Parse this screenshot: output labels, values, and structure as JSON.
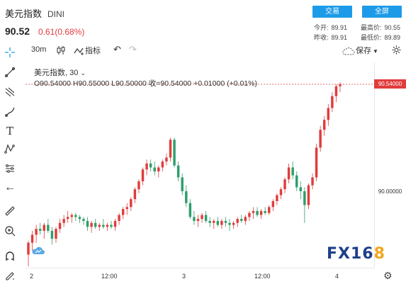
{
  "header": {
    "title": "美元指数",
    "symbol": "DINI",
    "price": "90.52",
    "change": "0.61(0.68%)",
    "buttons": {
      "trade": "交易",
      "fullscreen": "全屏"
    },
    "stats": {
      "today_open_label": "今开:",
      "today_open": "89.91",
      "high_label": "最高价:",
      "high": "90.55",
      "prev_close_label": "昨收:",
      "prev_close": "89.91",
      "low_label": "最低价:",
      "low": "89.89"
    }
  },
  "toolbar": {
    "interval": "30m",
    "indicators_label": "指标",
    "save_label": "保存"
  },
  "legend": {
    "title": "美元指数",
    "interval": "30",
    "ohlc": "O90.54000  H90.55000  L90.50000  收=90.54000  +0.01000 (+0.01%)"
  },
  "axis": {
    "last_price_tag": "90.54000",
    "mid_tick": "90.00000"
  },
  "time_axis": [
    "2",
    "12:00",
    "3",
    "12:00",
    "4"
  ],
  "watermark": {
    "part1": "FX16",
    "part2": "8"
  },
  "colors": {
    "up": "#e03c3c",
    "down": "#2e9e6b",
    "accent": "#1e9be8"
  },
  "chart_data": {
    "type": "candlestick",
    "y_axis_tick": 90.0,
    "last_price": 90.54,
    "candles": [
      [
        89.68,
        89.75,
        89.62,
        89.74
      ],
      [
        89.74,
        89.8,
        89.7,
        89.78
      ],
      [
        89.78,
        89.83,
        89.74,
        89.81
      ],
      [
        89.81,
        89.84,
        89.78,
        89.8
      ],
      [
        89.8,
        89.84,
        89.76,
        89.83
      ],
      [
        89.83,
        89.86,
        89.79,
        89.8
      ],
      [
        89.8,
        89.82,
        89.73,
        89.76
      ],
      [
        89.76,
        89.82,
        89.74,
        89.81
      ],
      [
        89.81,
        89.86,
        89.79,
        89.84
      ],
      [
        89.84,
        89.88,
        89.82,
        89.86
      ],
      [
        89.86,
        89.9,
        89.84,
        89.87
      ],
      [
        89.87,
        89.89,
        89.84,
        89.88
      ],
      [
        89.88,
        89.89,
        89.85,
        89.87
      ],
      [
        89.87,
        89.88,
        89.84,
        89.86
      ],
      [
        89.86,
        89.87,
        89.83,
        89.85
      ],
      [
        89.85,
        89.87,
        89.8,
        89.82
      ],
      [
        89.82,
        89.85,
        89.79,
        89.84
      ],
      [
        89.84,
        89.86,
        89.81,
        89.82
      ],
      [
        89.82,
        89.84,
        89.8,
        89.83
      ],
      [
        89.83,
        89.86,
        89.81,
        89.82
      ],
      [
        89.82,
        89.84,
        89.8,
        89.83
      ],
      [
        89.83,
        89.85,
        89.81,
        89.82
      ],
      [
        89.82,
        89.86,
        89.8,
        89.85
      ],
      [
        89.85,
        89.89,
        89.83,
        89.88
      ],
      [
        89.88,
        89.92,
        89.86,
        89.91
      ],
      [
        89.91,
        89.94,
        89.88,
        89.92
      ],
      [
        89.92,
        89.97,
        89.9,
        89.96
      ],
      [
        89.96,
        90.02,
        89.94,
        90.01
      ],
      [
        90.01,
        90.06,
        89.99,
        90.05
      ],
      [
        90.05,
        90.12,
        90.03,
        90.11
      ],
      [
        90.11,
        90.16,
        90.08,
        90.14
      ],
      [
        90.14,
        90.16,
        90.1,
        90.12
      ],
      [
        90.12,
        90.15,
        90.08,
        90.1
      ],
      [
        90.1,
        90.13,
        90.07,
        90.12
      ],
      [
        90.12,
        90.16,
        90.1,
        90.15
      ],
      [
        90.15,
        90.19,
        90.13,
        90.17
      ],
      [
        90.17,
        90.27,
        90.15,
        90.26
      ],
      [
        90.26,
        90.27,
        90.12,
        90.13
      ],
      [
        90.13,
        90.15,
        90.05,
        90.07
      ],
      [
        90.07,
        90.09,
        89.98,
        90.0
      ],
      [
        90.0,
        90.03,
        89.92,
        89.94
      ],
      [
        89.94,
        89.96,
        89.86,
        89.87
      ],
      [
        89.87,
        89.9,
        89.83,
        89.85
      ],
      [
        89.85,
        89.88,
        89.82,
        89.86
      ],
      [
        89.86,
        89.89,
        89.84,
        89.88
      ],
      [
        89.88,
        89.9,
        89.84,
        89.85
      ],
      [
        89.85,
        89.87,
        89.82,
        89.84
      ],
      [
        89.84,
        89.86,
        89.81,
        89.85
      ],
      [
        89.85,
        89.87,
        89.82,
        89.83
      ],
      [
        89.83,
        89.86,
        89.81,
        89.85
      ],
      [
        89.85,
        89.87,
        89.82,
        89.84
      ],
      [
        89.84,
        89.86,
        89.8,
        89.83
      ],
      [
        89.83,
        89.85,
        89.81,
        89.84
      ],
      [
        89.84,
        89.87,
        89.82,
        89.86
      ],
      [
        89.86,
        89.88,
        89.84,
        89.85
      ],
      [
        89.85,
        89.88,
        89.83,
        89.87
      ],
      [
        89.87,
        89.9,
        89.85,
        89.89
      ],
      [
        89.89,
        89.92,
        89.86,
        89.9
      ],
      [
        89.9,
        89.92,
        89.87,
        89.88
      ],
      [
        89.88,
        89.91,
        89.86,
        89.9
      ],
      [
        89.9,
        89.92,
        89.88,
        89.89
      ],
      [
        89.89,
        89.93,
        89.88,
        89.92
      ],
      [
        89.92,
        89.96,
        89.9,
        89.95
      ],
      [
        89.95,
        89.99,
        89.93,
        89.98
      ],
      [
        89.98,
        90.02,
        89.96,
        90.01
      ],
      [
        90.01,
        90.07,
        89.99,
        90.06
      ],
      [
        90.06,
        90.14,
        90.04,
        90.12
      ],
      [
        90.12,
        90.15,
        90.06,
        90.08
      ],
      [
        90.08,
        90.1,
        90.0,
        90.02
      ],
      [
        90.02,
        90.05,
        89.96,
        90.0
      ],
      [
        90.0,
        90.02,
        89.84,
        89.93
      ],
      [
        89.93,
        90.04,
        89.91,
        90.03
      ],
      [
        90.03,
        90.09,
        90.01,
        90.07
      ],
      [
        90.07,
        90.24,
        90.05,
        90.22
      ],
      [
        90.22,
        90.33,
        90.2,
        90.31
      ],
      [
        90.31,
        90.38,
        90.28,
        90.36
      ],
      [
        90.36,
        90.44,
        90.33,
        90.42
      ],
      [
        90.42,
        90.5,
        90.4,
        90.48
      ],
      [
        90.48,
        90.54,
        90.45,
        90.53
      ],
      [
        90.53,
        90.55,
        90.5,
        90.54
      ]
    ]
  }
}
